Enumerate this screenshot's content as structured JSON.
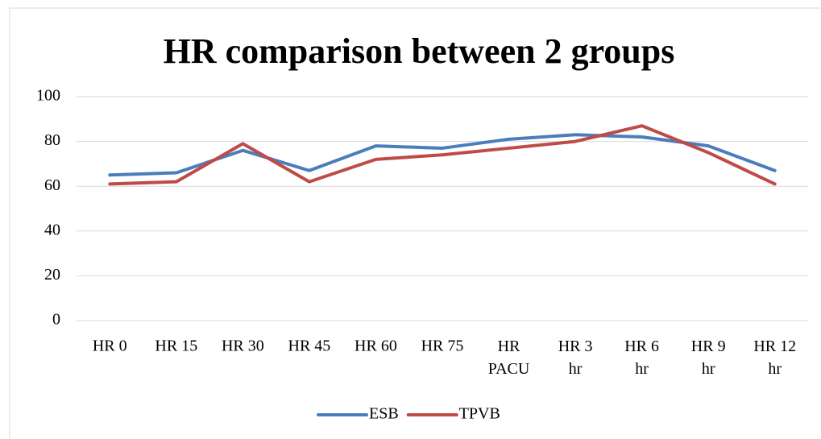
{
  "chart_data": {
    "type": "line",
    "title": "HR comparison between 2 groups",
    "categories": [
      "HR 0",
      "HR 15",
      "HR 30",
      "HR 45",
      "HR 60",
      "HR 75",
      "HR PACU",
      "HR 3 hr",
      "HR 6 hr",
      "HR 9 hr",
      "HR 12 hr"
    ],
    "series": [
      {
        "name": "ESB",
        "color": "#4a7ebb",
        "values": [
          65,
          66,
          76,
          67,
          78,
          77,
          81,
          83,
          82,
          78,
          67
        ]
      },
      {
        "name": "TPVB",
        "color": "#be4b48",
        "values": [
          61,
          62,
          79,
          62,
          72,
          74,
          77,
          80,
          87,
          75,
          61
        ]
      }
    ],
    "ylim": [
      0,
      100
    ],
    "yticks": [
      0,
      20,
      40,
      60,
      80,
      100
    ],
    "grid": true,
    "legend": "bottom"
  }
}
